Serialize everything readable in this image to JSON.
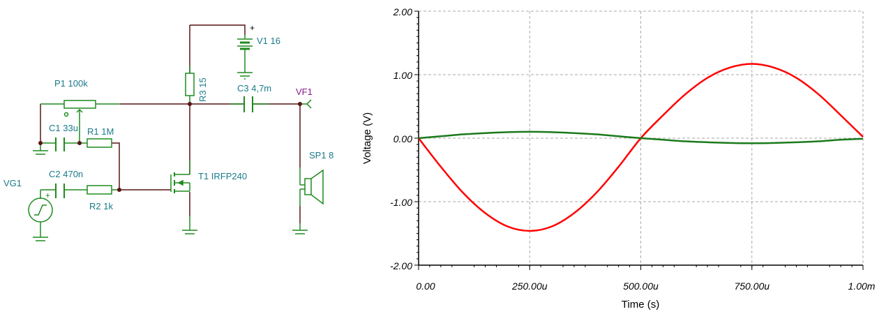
{
  "schematic": {
    "labels": {
      "v1": "V1 16",
      "v1_plus": "+",
      "r3": "R3 15",
      "p1": "P1 100k",
      "c3": "C3 4,7m",
      "vf1": "VF1",
      "c1": "C1 33u",
      "r1": "R1 1M",
      "sp1": "SP1 8",
      "vg1": "VG1",
      "vg1_plus": "+",
      "c2": "C2 470n",
      "t1": "T1 IRFP240",
      "r2": "R2 1k"
    },
    "colors": {
      "wire": "#5a1414",
      "component": "#1f8a1f",
      "label": "#1a7a8a",
      "probe": "#8b1a8b"
    }
  },
  "chart_data": {
    "type": "line",
    "title": "",
    "xlabel": "Time (s)",
    "ylabel": "Voltage (V)",
    "xlim": [
      0,
      0.001
    ],
    "ylim": [
      -2,
      2
    ],
    "grid": true,
    "xticks": [
      0,
      0.00025,
      0.0005,
      0.00075,
      0.001
    ],
    "xtick_labels": [
      "0.00",
      "250.00u",
      "500.00u",
      "750.00u",
      "1.00m"
    ],
    "yticks": [
      2,
      1,
      0,
      -1,
      -2
    ],
    "ytick_labels": [
      "2.00",
      "1.00",
      "0.00",
      "-1.00",
      "-2.00"
    ],
    "x": [
      0,
      5e-05,
      0.0001,
      0.00015,
      0.0002,
      0.00025,
      0.0003,
      0.00035,
      0.0004,
      0.00045,
      0.0005,
      0.00055,
      0.0006,
      0.00065,
      0.0007,
      0.00075,
      0.0008,
      0.00085,
      0.0009,
      0.00095,
      0.001
    ],
    "series": [
      {
        "name": "VF1",
        "color": "#ff0000",
        "values": [
          0,
          -0.45,
          -0.86,
          -1.18,
          -1.39,
          -1.46,
          -1.39,
          -1.18,
          -0.86,
          -0.45,
          0,
          0.36,
          0.69,
          0.95,
          1.11,
          1.17,
          1.11,
          0.95,
          0.69,
          0.36,
          0.02
        ]
      },
      {
        "name": "VG1",
        "color": "#1a7a1a",
        "values": [
          0,
          0.03,
          0.06,
          0.08,
          0.095,
          0.1,
          0.095,
          0.08,
          0.06,
          0.03,
          0,
          -0.025,
          -0.05,
          -0.065,
          -0.075,
          -0.08,
          -0.075,
          -0.065,
          -0.05,
          -0.025,
          -0.01
        ]
      }
    ]
  }
}
